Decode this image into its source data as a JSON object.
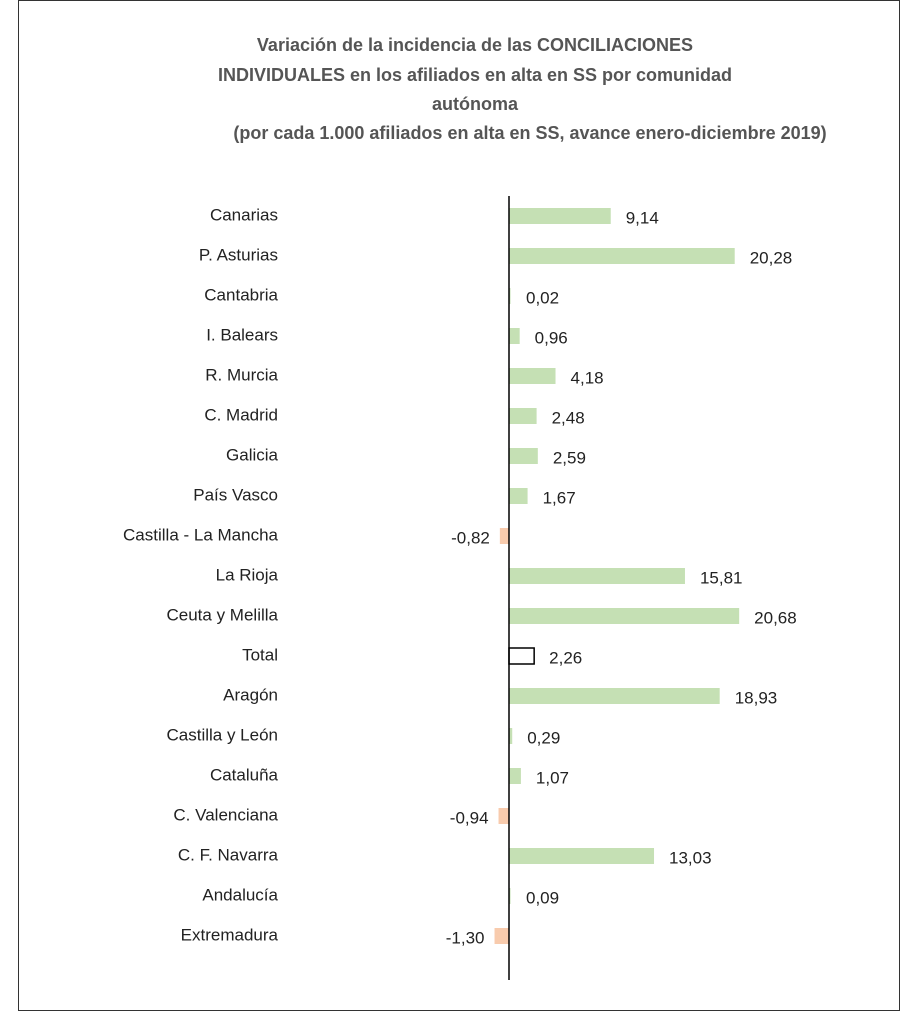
{
  "chart_data": {
    "type": "barh",
    "title": [
      "Variación de la incidencia de las CONCILIACIONES",
      "INDIVIDUALES en los afiliados en alta en SS por comunidad",
      "autónoma"
    ],
    "subtitle": "(por cada 1.000 afiliados en alta en SS, avance enero-diciembre 2019)",
    "categories": [
      "Canarias",
      "P. Asturias",
      "Cantabria",
      "I. Balears",
      "R. Murcia",
      "C. Madrid",
      "Galicia",
      "País Vasco",
      "Castilla - La Mancha",
      "La Rioja",
      "Ceuta y Melilla",
      "Total",
      "Aragón",
      "Castilla y León",
      "Cataluña",
      "C. Valenciana",
      "C. F. Navarra",
      "Andalucía",
      "Extremadura"
    ],
    "values": [
      9.14,
      20.28,
      0.02,
      0.96,
      4.18,
      2.48,
      2.59,
      1.67,
      -0.82,
      15.81,
      20.68,
      2.26,
      18.93,
      0.29,
      1.07,
      -0.94,
      13.03,
      0.09,
      -1.3
    ],
    "value_labels": [
      "9,14",
      "20,28",
      "0,02",
      "0,96",
      "4,18",
      "2,48",
      "2,59",
      "1,67",
      "-0,82",
      "15,81",
      "20,68",
      "2,26",
      "18,93",
      "0,29",
      "1,07",
      "-0,94",
      "13,03",
      "0,09",
      "-1,30"
    ],
    "colors": [
      "#c5e0b4",
      "#c5e0b4",
      "#c5e0b4",
      "#c5e0b4",
      "#c5e0b4",
      "#c5e0b4",
      "#c5e0b4",
      "#c5e0b4",
      "#f8cbad",
      "#c5e0b4",
      "#c5e0b4",
      "#ffffff",
      "#c5e0b4",
      "#c5e0b4",
      "#c5e0b4",
      "#f8cbad",
      "#c5e0b4",
      "#c5e0b4",
      "#f8cbad"
    ]
  }
}
